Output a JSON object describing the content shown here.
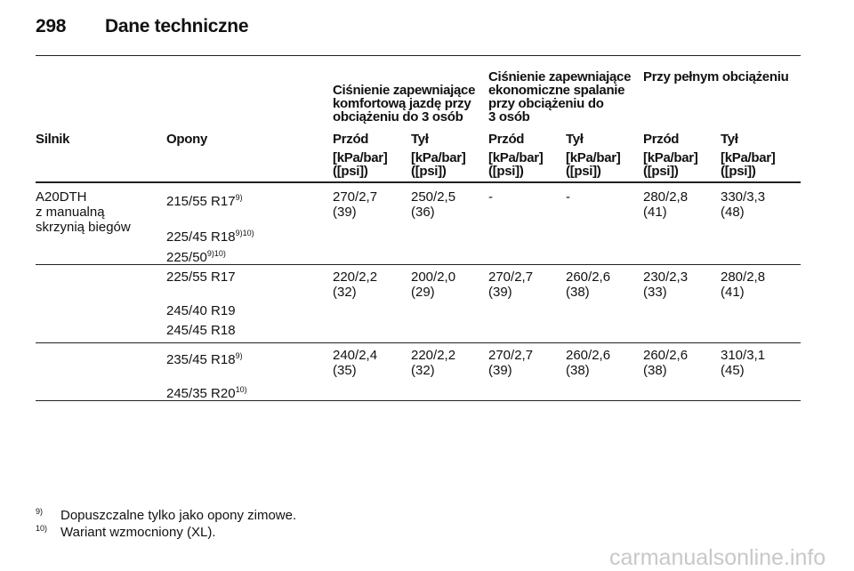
{
  "header": {
    "page_number": "298",
    "title": "Dane techniczne"
  },
  "table": {
    "group_headers": [
      [
        "Ciśnienie zapewniające",
        "komfortową jazdę przy",
        "obciążeniu do 3 osób"
      ],
      [
        "Ciśnienie zapewniające",
        "ekonomiczne spalanie",
        "przy obciążeniu do",
        "3 osób"
      ],
      [
        "Przy pełnym obciążeniu"
      ]
    ],
    "columns": [
      "Silnik",
      "Opony",
      "Przód",
      "Tył",
      "Przód",
      "Tył",
      "Przód",
      "Tył"
    ],
    "units": [
      [
        "[kPa/bar]",
        "([psi])"
      ],
      [
        "[kPa/bar]",
        "([psi])"
      ],
      [
        "[kPa/bar]",
        "([psi])"
      ],
      [
        "[kPa/bar]",
        "([psi])"
      ],
      [
        "[kPa/bar]",
        "([psi])"
      ],
      [
        "[kPa/bar]",
        "([psi])"
      ]
    ],
    "rows": [
      {
        "engine": [
          "A20DTH",
          "z manualną",
          "skrzynią biegów"
        ],
        "tires": [
          {
            "name": "215/55 R17",
            "sup": "9)"
          },
          {
            "name": "225/45 R18",
            "sup": "9)10)"
          },
          {
            "name": "225/50",
            "sup": "9)10)"
          }
        ],
        "values": [
          [
            "270/2,7",
            "(39)"
          ],
          [
            "250/2,5",
            "(36)"
          ],
          [
            "-"
          ],
          [
            "-"
          ],
          [
            "280/2,8",
            "(41)"
          ],
          [
            "330/3,3",
            "(48)"
          ]
        ]
      },
      {
        "tires": [
          {
            "name": "225/55 R17"
          },
          {
            "name": "245/40 R19"
          },
          {
            "name": "245/45 R18"
          }
        ],
        "values": [
          [
            "220/2,2",
            "(32)"
          ],
          [
            "200/2,0",
            "(29)"
          ],
          [
            "270/2,7",
            "(39)"
          ],
          [
            "260/2,6",
            "(38)"
          ],
          [
            "230/2,3",
            "(33)"
          ],
          [
            "280/2,8",
            "(41)"
          ]
        ]
      },
      {
        "tires": [
          {
            "name": "235/45 R18",
            "sup": "9)"
          },
          {
            "name": "245/35 R20",
            "sup": "10)"
          }
        ],
        "values": [
          [
            "240/2,4",
            "(35)"
          ],
          [
            "220/2,2",
            "(32)"
          ],
          [
            "270/2,7",
            "(39)"
          ],
          [
            "260/2,6",
            "(38)"
          ],
          [
            "260/2,6",
            "(38)"
          ],
          [
            "310/3,1",
            "(45)"
          ]
        ]
      }
    ]
  },
  "footnotes": [
    {
      "mark": "9)",
      "text": "Dopuszczalne tylko jako opony zimowe."
    },
    {
      "mark": "10)",
      "text": "Wariant wzmocniony (XL)."
    }
  ],
  "watermark": "carmanualsonline.info"
}
